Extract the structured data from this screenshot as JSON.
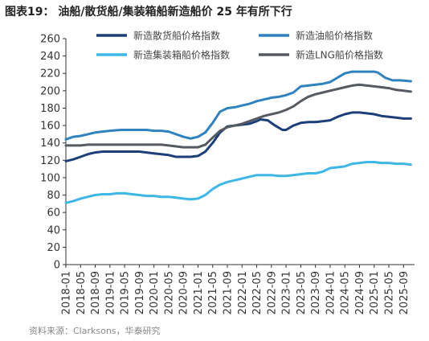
{
  "title": "图表19：  油船/散货船/集装箱船新造船价 25 年有所下行",
  "source": "资料来源：Clarksons，华泰研究",
  "chart_data": {
    "type": "line",
    "title": "图表19：  油船/散货船/集装箱船新造船价 25 年有所下行",
    "xlabel": "",
    "ylabel": "",
    "ylim": [
      0,
      260
    ],
    "yticks": [
      0,
      20,
      40,
      60,
      80,
      100,
      120,
      140,
      160,
      180,
      200,
      220,
      240,
      260
    ],
    "xlim": [
      "2018-01",
      "2025-12"
    ],
    "xticks": [
      "2018-01",
      "2018-05",
      "2018-09",
      "2019-01",
      "2019-05",
      "2019-09",
      "2020-01",
      "2020-05",
      "2020-09",
      "2021-01",
      "2021-05",
      "2021-09",
      "2022-01",
      "2022-05",
      "2022-09",
      "2023-01",
      "2023-05",
      "2023-09",
      "2024-01",
      "2024-05",
      "2024-09",
      "2025-01",
      "2025-05",
      "2025-09"
    ],
    "grid": false,
    "legend_position": "top",
    "series": [
      {
        "name": "新造散货船价格指数",
        "color": "#1c3f7a",
        "points": [
          [
            "2018-01",
            119
          ],
          [
            "2018-03",
            121
          ],
          [
            "2018-05",
            124
          ],
          [
            "2018-07",
            127
          ],
          [
            "2018-09",
            129
          ],
          [
            "2018-11",
            130
          ],
          [
            "2019-01",
            130
          ],
          [
            "2019-04",
            130
          ],
          [
            "2019-07",
            130
          ],
          [
            "2019-09",
            130
          ],
          [
            "2019-11",
            129
          ],
          [
            "2020-01",
            128
          ],
          [
            "2020-03",
            127
          ],
          [
            "2020-05",
            126
          ],
          [
            "2020-07",
            124
          ],
          [
            "2020-09",
            124
          ],
          [
            "2020-11",
            124
          ],
          [
            "2021-01",
            125
          ],
          [
            "2021-03",
            130
          ],
          [
            "2021-05",
            140
          ],
          [
            "2021-07",
            152
          ],
          [
            "2021-09",
            159
          ],
          [
            "2021-11",
            160
          ],
          [
            "2022-01",
            161
          ],
          [
            "2022-03",
            162
          ],
          [
            "2022-05",
            165
          ],
          [
            "2022-06",
            167
          ],
          [
            "2022-08",
            166
          ],
          [
            "2022-10",
            160
          ],
          [
            "2022-12",
            155
          ],
          [
            "2023-01",
            155
          ],
          [
            "2023-03",
            160
          ],
          [
            "2023-05",
            163
          ],
          [
            "2023-07",
            164
          ],
          [
            "2023-09",
            164
          ],
          [
            "2023-11",
            165
          ],
          [
            "2024-01",
            166
          ],
          [
            "2024-03",
            170
          ],
          [
            "2024-05",
            173
          ],
          [
            "2024-07",
            175
          ],
          [
            "2024-09",
            175
          ],
          [
            "2024-11",
            174
          ],
          [
            "2025-01",
            173
          ],
          [
            "2025-03",
            171
          ],
          [
            "2025-05",
            170
          ],
          [
            "2025-07",
            169
          ],
          [
            "2025-09",
            168
          ],
          [
            "2025-11",
            168
          ]
        ]
      },
      {
        "name": "新造油船价格指数",
        "color": "#2f82c0",
        "points": [
          [
            "2018-01",
            144
          ],
          [
            "2018-03",
            147
          ],
          [
            "2018-05",
            148
          ],
          [
            "2018-07",
            150
          ],
          [
            "2018-09",
            152
          ],
          [
            "2018-11",
            153
          ],
          [
            "2019-01",
            154
          ],
          [
            "2019-04",
            155
          ],
          [
            "2019-07",
            155
          ],
          [
            "2019-09",
            155
          ],
          [
            "2019-11",
            155
          ],
          [
            "2020-01",
            154
          ],
          [
            "2020-03",
            154
          ],
          [
            "2020-05",
            153
          ],
          [
            "2020-07",
            150
          ],
          [
            "2020-09",
            147
          ],
          [
            "2020-11",
            145
          ],
          [
            "2021-01",
            147
          ],
          [
            "2021-03",
            152
          ],
          [
            "2021-05",
            163
          ],
          [
            "2021-07",
            176
          ],
          [
            "2021-09",
            180
          ],
          [
            "2021-11",
            181
          ],
          [
            "2022-01",
            183
          ],
          [
            "2022-03",
            185
          ],
          [
            "2022-05",
            188
          ],
          [
            "2022-07",
            190
          ],
          [
            "2022-09",
            192
          ],
          [
            "2022-11",
            193
          ],
          [
            "2023-01",
            195
          ],
          [
            "2023-03",
            198
          ],
          [
            "2023-05",
            205
          ],
          [
            "2023-07",
            206
          ],
          [
            "2023-09",
            207
          ],
          [
            "2023-11",
            208
          ],
          [
            "2024-01",
            210
          ],
          [
            "2024-03",
            215
          ],
          [
            "2024-05",
            220
          ],
          [
            "2024-07",
            222
          ],
          [
            "2024-09",
            222
          ],
          [
            "2024-11",
            222
          ],
          [
            "2025-01",
            222
          ],
          [
            "2025-02",
            221
          ],
          [
            "2025-04",
            215
          ],
          [
            "2025-06",
            212
          ],
          [
            "2025-08",
            212
          ],
          [
            "2025-11",
            211
          ]
        ]
      },
      {
        "name": "新造集装箱船价格指数",
        "color": "#3db6e8",
        "points": [
          [
            "2018-01",
            71
          ],
          [
            "2018-03",
            73
          ],
          [
            "2018-05",
            76
          ],
          [
            "2018-07",
            78
          ],
          [
            "2018-09",
            80
          ],
          [
            "2018-11",
            81
          ],
          [
            "2019-01",
            81
          ],
          [
            "2019-03",
            82
          ],
          [
            "2019-05",
            82
          ],
          [
            "2019-07",
            81
          ],
          [
            "2019-09",
            80
          ],
          [
            "2019-11",
            79
          ],
          [
            "2020-01",
            79
          ],
          [
            "2020-03",
            78
          ],
          [
            "2020-05",
            78
          ],
          [
            "2020-07",
            77
          ],
          [
            "2020-09",
            76
          ],
          [
            "2020-11",
            75
          ],
          [
            "2021-01",
            76
          ],
          [
            "2021-03",
            80
          ],
          [
            "2021-05",
            87
          ],
          [
            "2021-07",
            92
          ],
          [
            "2021-09",
            95
          ],
          [
            "2021-11",
            97
          ],
          [
            "2022-01",
            99
          ],
          [
            "2022-03",
            101
          ],
          [
            "2022-05",
            103
          ],
          [
            "2022-07",
            103
          ],
          [
            "2022-09",
            103
          ],
          [
            "2022-11",
            102
          ],
          [
            "2023-01",
            102
          ],
          [
            "2023-03",
            103
          ],
          [
            "2023-05",
            104
          ],
          [
            "2023-07",
            105
          ],
          [
            "2023-09",
            105
          ],
          [
            "2023-11",
            107
          ],
          [
            "2024-01",
            111
          ],
          [
            "2024-03",
            112
          ],
          [
            "2024-05",
            113
          ],
          [
            "2024-07",
            116
          ],
          [
            "2024-09",
            117
          ],
          [
            "2024-11",
            118
          ],
          [
            "2025-01",
            118
          ],
          [
            "2025-03",
            117
          ],
          [
            "2025-05",
            117
          ],
          [
            "2025-07",
            116
          ],
          [
            "2025-09",
            116
          ],
          [
            "2025-11",
            115
          ]
        ]
      },
      {
        "name": "新造LNG船价格指数",
        "color": "#555a60",
        "points": [
          [
            "2018-01",
            137
          ],
          [
            "2018-03",
            137
          ],
          [
            "2018-05",
            137
          ],
          [
            "2018-07",
            138
          ],
          [
            "2018-09",
            138
          ],
          [
            "2018-11",
            138
          ],
          [
            "2019-01",
            138
          ],
          [
            "2019-04",
            138
          ],
          [
            "2019-07",
            138
          ],
          [
            "2019-09",
            138
          ],
          [
            "2019-11",
            138
          ],
          [
            "2020-01",
            138
          ],
          [
            "2020-03",
            138
          ],
          [
            "2020-05",
            137
          ],
          [
            "2020-07",
            136
          ],
          [
            "2020-09",
            135
          ],
          [
            "2020-11",
            135
          ],
          [
            "2021-01",
            135
          ],
          [
            "2021-03",
            138
          ],
          [
            "2021-05",
            146
          ],
          [
            "2021-07",
            154
          ],
          [
            "2021-09",
            158
          ],
          [
            "2021-11",
            160
          ],
          [
            "2022-01",
            162
          ],
          [
            "2022-03",
            165
          ],
          [
            "2022-05",
            168
          ],
          [
            "2022-07",
            171
          ],
          [
            "2022-09",
            173
          ],
          [
            "2022-11",
            175
          ],
          [
            "2023-01",
            178
          ],
          [
            "2023-03",
            182
          ],
          [
            "2023-05",
            188
          ],
          [
            "2023-07",
            193
          ],
          [
            "2023-09",
            196
          ],
          [
            "2023-11",
            198
          ],
          [
            "2024-01",
            200
          ],
          [
            "2024-03",
            202
          ],
          [
            "2024-05",
            204
          ],
          [
            "2024-07",
            206
          ],
          [
            "2024-09",
            207
          ],
          [
            "2024-11",
            206
          ],
          [
            "2025-01",
            205
          ],
          [
            "2025-03",
            204
          ],
          [
            "2025-05",
            203
          ],
          [
            "2025-07",
            201
          ],
          [
            "2025-09",
            200
          ],
          [
            "2025-11",
            199
          ]
        ]
      }
    ]
  }
}
